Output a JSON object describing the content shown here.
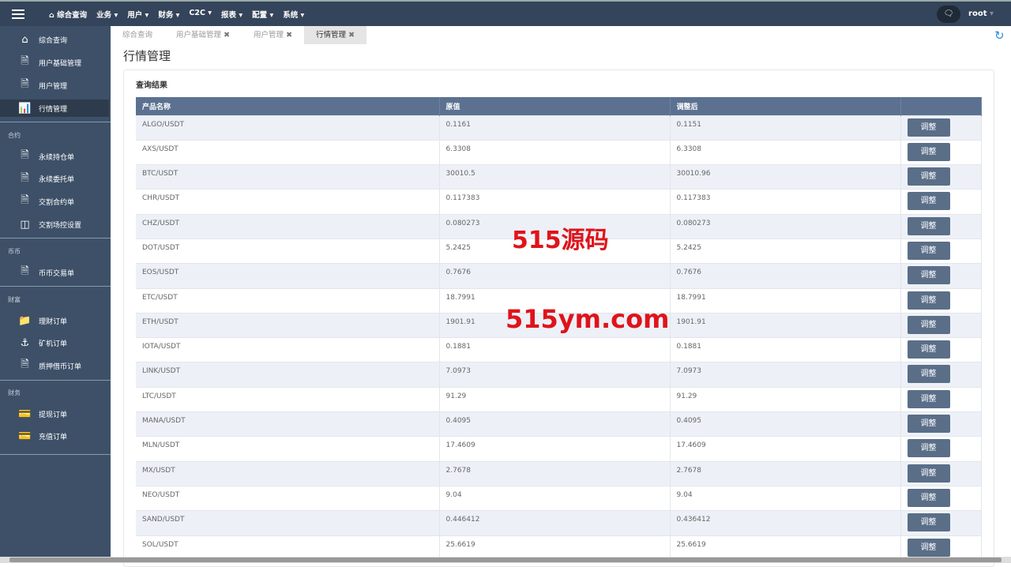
{
  "topbar": {
    "menu": [
      "综合查询",
      "业务",
      "用户",
      "财务",
      "C2C",
      "报表",
      "配置",
      "系统"
    ],
    "user": "root"
  },
  "sidebar": {
    "top_items": [
      {
        "label": "综合查询",
        "icon": "home-icon"
      },
      {
        "label": "用户基础管理",
        "icon": "file-icon"
      },
      {
        "label": "用户管理",
        "icon": "file-icon"
      },
      {
        "label": "行情管理",
        "icon": "bar-chart-icon",
        "active": true
      }
    ],
    "sections": [
      {
        "label": "合约",
        "items": [
          {
            "label": "永续持仓单",
            "icon": "file-icon"
          },
          {
            "label": "永续委托单",
            "icon": "file-icon"
          },
          {
            "label": "交割合约单",
            "icon": "file-icon"
          },
          {
            "label": "交割场控设置",
            "icon": "columns-icon"
          }
        ]
      },
      {
        "label": "币币",
        "items": [
          {
            "label": "币币交易单",
            "icon": "file-icon"
          }
        ]
      },
      {
        "label": "财富",
        "items": [
          {
            "label": "理财订单",
            "icon": "folder-icon"
          },
          {
            "label": "矿机订单",
            "icon": "anchor-icon"
          },
          {
            "label": "质押借币订单",
            "icon": "file-icon"
          }
        ]
      },
      {
        "label": "财务",
        "items": [
          {
            "label": "提现订单",
            "icon": "credit-card-icon"
          },
          {
            "label": "充值订单",
            "icon": "credit-card-icon"
          }
        ]
      }
    ]
  },
  "tabs": [
    {
      "label": "综合查询",
      "closable": false
    },
    {
      "label": "用户基础管理",
      "closable": true
    },
    {
      "label": "用户管理",
      "closable": true
    },
    {
      "label": "行情管理",
      "closable": true,
      "active": true
    }
  ],
  "page_title": "行情管理",
  "panel_title": "查询结果",
  "table": {
    "headers": [
      "产品名称",
      "原值",
      "调整后",
      ""
    ],
    "button_label": "调整",
    "rows": [
      [
        "ALGO/USDT",
        "0.1161",
        "0.1151"
      ],
      [
        "AXS/USDT",
        "6.3308",
        "6.3308"
      ],
      [
        "BTC/USDT",
        "30010.5",
        "30010.96"
      ],
      [
        "CHR/USDT",
        "0.117383",
        "0.117383"
      ],
      [
        "CHZ/USDT",
        "0.080273",
        "0.080273"
      ],
      [
        "DOT/USDT",
        "5.2425",
        "5.2425"
      ],
      [
        "EOS/USDT",
        "0.7676",
        "0.7676"
      ],
      [
        "ETC/USDT",
        "18.7991",
        "18.7991"
      ],
      [
        "ETH/USDT",
        "1901.91",
        "1901.91"
      ],
      [
        "IOTA/USDT",
        "0.1881",
        "0.1881"
      ],
      [
        "LINK/USDT",
        "7.0973",
        "7.0973"
      ],
      [
        "LTC/USDT",
        "91.29",
        "91.29"
      ],
      [
        "MANA/USDT",
        "0.4095",
        "0.4095"
      ],
      [
        "MLN/USDT",
        "17.4609",
        "17.4609"
      ],
      [
        "MX/USDT",
        "2.7678",
        "2.7678"
      ],
      [
        "NEO/USDT",
        "9.04",
        "9.04"
      ],
      [
        "SAND/USDT",
        "0.446412",
        "0.436412"
      ],
      [
        "SOL/USDT",
        "25.6619",
        "25.6619"
      ]
    ]
  },
  "watermark": [
    "515源码",
    "515ym.com"
  ],
  "colors": {
    "topbar": "#34445a",
    "sidebar": "#3d5068",
    "table_header": "#5c7190",
    "button": "#5a6e88",
    "watermark": "#e0131a",
    "refresh": "#2a8ee0"
  }
}
